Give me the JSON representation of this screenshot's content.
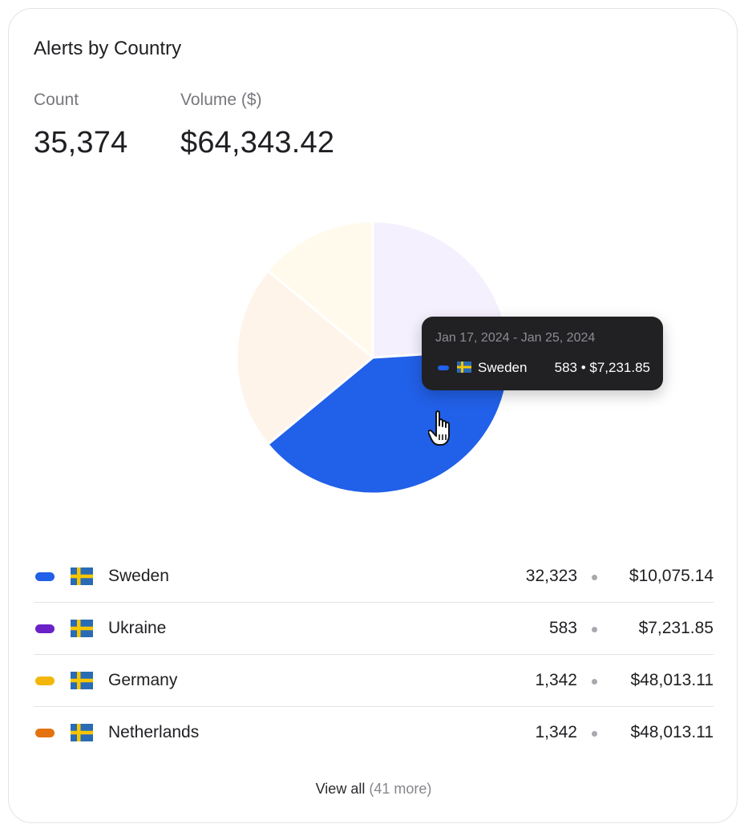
{
  "card": {
    "title": "Alerts by Country",
    "metrics": [
      {
        "label": "Count",
        "value": "35,374"
      },
      {
        "label": "Volume ($)",
        "value": "$64,343.42"
      }
    ]
  },
  "chart_data": {
    "type": "pie",
    "title": "",
    "slices": [
      {
        "name": "lavender-slice",
        "value": 24,
        "color": "#f4f0fe"
      },
      {
        "name": "Sweden",
        "value": 40,
        "color": "#2160e8"
      },
      {
        "name": "peach-slice",
        "value": 22,
        "color": "#fef4ea"
      },
      {
        "name": "cream-slice",
        "value": 14,
        "color": "#fffaeb"
      }
    ],
    "start_angle_deg": 0,
    "slice_separator_color": "#ffffff",
    "tooltip": {
      "date_range": "Jan 17, 2024 - Jan 25, 2024",
      "country": "Sweden",
      "value": "583 • $7,231.85",
      "color": "#2160e8",
      "flag": "sweden-flag"
    }
  },
  "legend": {
    "rows": [
      {
        "color": "#2160e8",
        "flag": "sweden-flag",
        "country": "Sweden",
        "count": "32,323",
        "volume": "$10,075.14"
      },
      {
        "color": "#6b21c8",
        "flag": "sweden-flag",
        "country": "Ukraine",
        "count": "583",
        "volume": "$7,231.85"
      },
      {
        "color": "#f2b70a",
        "flag": "sweden-flag",
        "country": "Germany",
        "count": "1,342",
        "volume": "$48,013.11"
      },
      {
        "color": "#e3720f",
        "flag": "sweden-flag",
        "country": "Netherlands",
        "count": "1,342",
        "volume": "$48,013.11"
      }
    ]
  },
  "footer": {
    "view_all_label": "View all",
    "more_label": "(41 more)"
  },
  "flag_colors": {
    "blue": "#2a6bb5",
    "yellow": "#f7c600"
  }
}
